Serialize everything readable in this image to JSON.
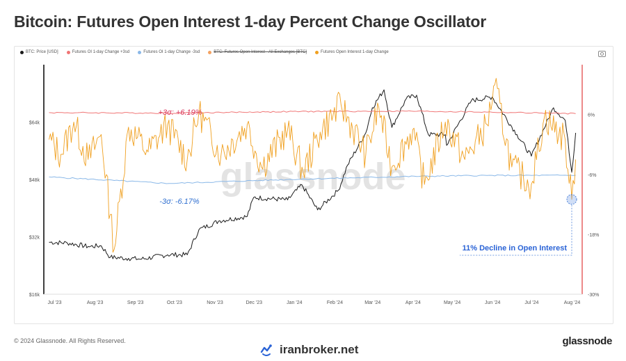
{
  "header": {
    "title": "Bitcoin: Futures Open Interest 1-day Percent Change Oscillator"
  },
  "legend": [
    {
      "label": "BTC: Price [USD]",
      "color": "#1a1a1a",
      "struck": false
    },
    {
      "label": "Futures OI 1-day Change +3sd",
      "color": "#f07575",
      "struck": false
    },
    {
      "label": "Futures OI 1-day Change -3sd",
      "color": "#8ab8e8",
      "struck": false
    },
    {
      "label": "BTC: Futures Open Interest - All Exchanges [BTC]",
      "color": "#f4a261",
      "struck": true
    },
    {
      "label": "Futures Open Interest 1-day Change",
      "color": "#f0a020",
      "struck": false
    }
  ],
  "chart_data": {
    "type": "line",
    "x_ticks": [
      "Jul '23",
      "Aug '23",
      "Sep '23",
      "Oct '23",
      "Nov '23",
      "Dec '23",
      "Jan '24",
      "Feb '24",
      "Mar '24",
      "Apr '24",
      "May '24",
      "Jun '24",
      "Jul '24",
      "Aug '24"
    ],
    "y_left": {
      "ticks": [
        "$16k",
        "$32k",
        "$48k",
        "$64k"
      ],
      "values": [
        16000,
        32000,
        48000,
        64000
      ],
      "range": [
        16000,
        80000
      ]
    },
    "y_right": {
      "ticks": [
        "-30%",
        "-18%",
        "-6%",
        "6%"
      ],
      "values": [
        -30,
        -18,
        -6,
        6
      ],
      "range": [
        -30,
        16
      ]
    },
    "annotations": {
      "upper_band": "+3σ: +6.19%",
      "lower_band": "-3σ: -6.17%",
      "decline": "11% Decline in Open Interest"
    },
    "watermark": "glassnode",
    "series": [
      {
        "name": "BTC: Price [USD]",
        "axis": "left",
        "color": "#1a1a1a",
        "points": [
          [
            "2023-07-01",
            30500
          ],
          [
            "2023-07-15",
            30300
          ],
          [
            "2023-07-31",
            29300
          ],
          [
            "2023-08-10",
            29500
          ],
          [
            "2023-08-17",
            26300
          ],
          [
            "2023-08-31",
            26000
          ],
          [
            "2023-09-10",
            25800
          ],
          [
            "2023-09-30",
            27000
          ],
          [
            "2023-10-15",
            27000
          ],
          [
            "2023-10-24",
            34000
          ],
          [
            "2023-11-09",
            36500
          ],
          [
            "2023-11-30",
            37700
          ],
          [
            "2023-12-05",
            43000
          ],
          [
            "2023-12-31",
            42300
          ],
          [
            "2024-01-11",
            46500
          ],
          [
            "2024-01-23",
            39500
          ],
          [
            "2024-02-08",
            45000
          ],
          [
            "2024-02-15",
            52000
          ],
          [
            "2024-02-29",
            61000
          ],
          [
            "2024-03-05",
            68000
          ],
          [
            "2024-03-14",
            73000
          ],
          [
            "2024-03-20",
            62500
          ],
          [
            "2024-03-31",
            70500
          ],
          [
            "2024-04-08",
            71500
          ],
          [
            "2024-04-17",
            60500
          ],
          [
            "2024-04-30",
            60500
          ],
          [
            "2024-05-01",
            57500
          ],
          [
            "2024-05-20",
            70000
          ],
          [
            "2024-06-05",
            71000
          ],
          [
            "2024-06-24",
            60500
          ],
          [
            "2024-07-05",
            54500
          ],
          [
            "2024-07-22",
            68000
          ],
          [
            "2024-07-31",
            64500
          ],
          [
            "2024-08-05",
            50000
          ],
          [
            "2024-08-08",
            61000
          ]
        ]
      },
      {
        "name": "Futures OI 1-day Change +3sd",
        "axis": "right",
        "color": "#f07575",
        "points": [
          [
            "2023-07-01",
            6.4
          ],
          [
            "2023-10-01",
            6.3
          ],
          [
            "2024-01-01",
            6.6
          ],
          [
            "2024-04-01",
            6.7
          ],
          [
            "2024-06-01",
            6.5
          ],
          [
            "2024-08-08",
            6.19
          ]
        ]
      },
      {
        "name": "Futures OI 1-day Change -3sd",
        "axis": "right",
        "color": "#8ab8e8",
        "points": [
          [
            "2023-07-01",
            -6.5
          ],
          [
            "2023-10-01",
            -7.8
          ],
          [
            "2024-01-01",
            -7.0
          ],
          [
            "2024-04-01",
            -6.4
          ],
          [
            "2024-06-01",
            -6.2
          ],
          [
            "2024-08-08",
            -6.17
          ]
        ]
      },
      {
        "name": "Futures Open Interest 1-day Change",
        "axis": "right",
        "color": "#f0a020",
        "points": [
          [
            "2023-07-01",
            1.0
          ],
          [
            "2023-07-10",
            -2.0
          ],
          [
            "2023-07-20",
            4.5
          ],
          [
            "2023-07-31",
            -3.0
          ],
          [
            "2023-08-10",
            2.0
          ],
          [
            "2023-08-17",
            -14.0
          ],
          [
            "2023-08-20",
            -21.0
          ],
          [
            "2023-08-31",
            3.5
          ],
          [
            "2023-09-15",
            -1.5
          ],
          [
            "2023-09-30",
            4.0
          ],
          [
            "2023-10-15",
            -3.0
          ],
          [
            "2023-10-24",
            6.5
          ],
          [
            "2023-11-10",
            -2.0
          ],
          [
            "2023-11-30",
            4.0
          ],
          [
            "2023-12-11",
            -4.5
          ],
          [
            "2023-12-31",
            3.0
          ],
          [
            "2024-01-12",
            -5.5
          ],
          [
            "2024-01-25",
            2.5
          ],
          [
            "2024-02-10",
            8.0
          ],
          [
            "2024-02-29",
            -2.0
          ],
          [
            "2024-03-10",
            7.5
          ],
          [
            "2024-03-20",
            -4.5
          ],
          [
            "2024-04-05",
            3.0
          ],
          [
            "2024-04-14",
            -8.0
          ],
          [
            "2024-04-30",
            4.5
          ],
          [
            "2024-05-15",
            -3.0
          ],
          [
            "2024-06-01",
            4.0
          ],
          [
            "2024-06-07",
            12.0
          ],
          [
            "2024-06-20",
            -4.5
          ],
          [
            "2024-07-05",
            -8.0
          ],
          [
            "2024-07-15",
            5.5
          ],
          [
            "2024-07-31",
            1.0
          ],
          [
            "2024-08-02",
            -5.0
          ],
          [
            "2024-08-05",
            -11.0
          ],
          [
            "2024-08-08",
            -3.0
          ]
        ]
      }
    ]
  },
  "footer": {
    "copyright": "© 2024 Glassnode. All Rights Reserved.",
    "site": "iranbroker.net",
    "brand": "glassnode"
  }
}
